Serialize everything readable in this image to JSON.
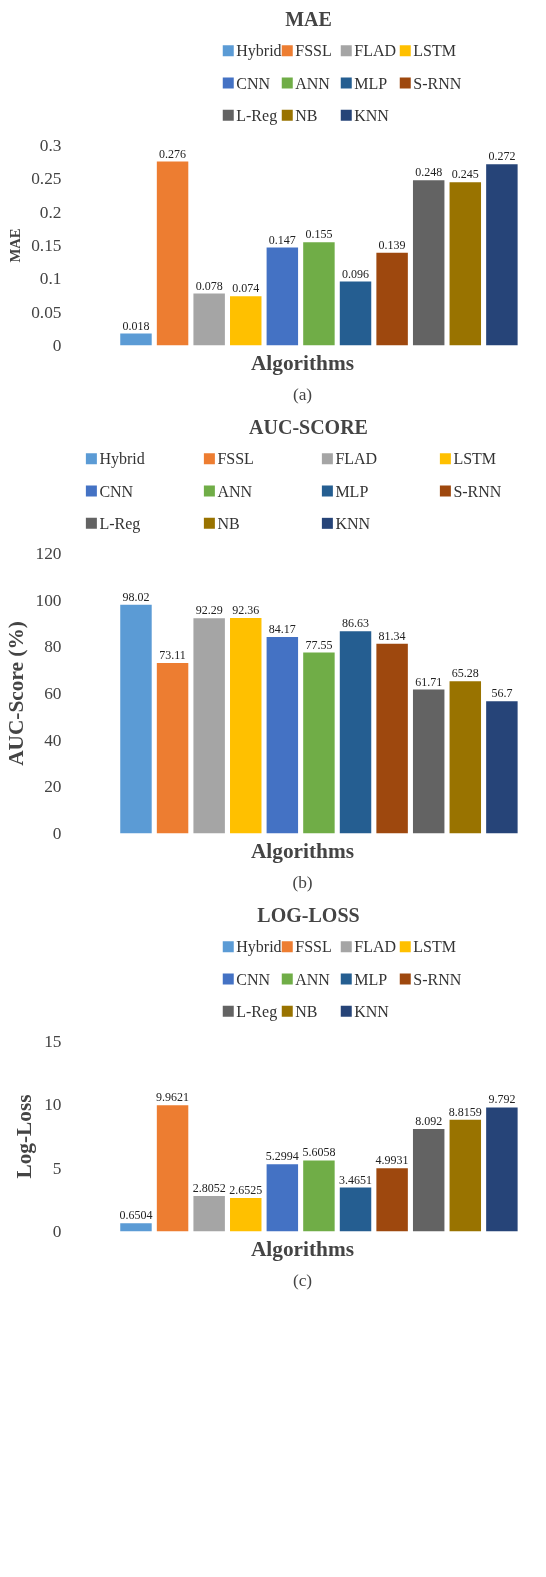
{
  "chart_data": [
    {
      "type": "bar",
      "title": "MAE",
      "xlabel": "Algorithms",
      "ylabel": "MAE",
      "categories": [
        null
      ],
      "ylim": [
        0,
        0.3
      ],
      "yticks": [
        0,
        0.05,
        0.1,
        0.15,
        0.2,
        0.25,
        0.3
      ],
      "data_labels": true,
      "legend": "top",
      "grid": false,
      "tick_labels": "y",
      "annotations": [
        "(a)"
      ],
      "series": [
        {
          "name": "Hybrid",
          "color": "#5b9bd5",
          "values": [
            0.018
          ]
        },
        {
          "name": "FSSL",
          "color": "#ed7d31",
          "values": [
            0.276
          ]
        },
        {
          "name": "FLAD",
          "color": "#a5a5a5",
          "values": [
            0.078
          ]
        },
        {
          "name": "LSTM",
          "color": "#ffc000",
          "values": [
            0.074
          ]
        },
        {
          "name": "CNN",
          "color": "#4472c4",
          "values": [
            0.147
          ]
        },
        {
          "name": "ANN",
          "color": "#70ad47",
          "values": [
            0.155
          ]
        },
        {
          "name": "MLP",
          "color": "#255e91",
          "values": [
            0.096
          ]
        },
        {
          "name": "S-RNN",
          "color": "#9e480e",
          "values": [
            0.139
          ]
        },
        {
          "name": "L-Reg",
          "color": "#636363",
          "values": [
            0.248
          ]
        },
        {
          "name": "NB",
          "color": "#997300",
          "values": [
            0.245
          ]
        },
        {
          "name": "KNN",
          "color": "#264478",
          "values": [
            0.272
          ]
        }
      ]
    },
    {
      "type": "bar",
      "title": "AUC-SCORE",
      "xlabel": "Algorithms",
      "ylabel": "AUC-Score (%)",
      "categories": [
        null
      ],
      "ylim": [
        0,
        120
      ],
      "yticks": [
        0,
        20,
        40,
        60,
        80,
        100,
        120
      ],
      "data_labels": true,
      "legend": "top",
      "grid": false,
      "tick_labels": "y",
      "annotations": [
        "(b)"
      ],
      "series": [
        {
          "name": "Hybrid",
          "color": "#5b9bd5",
          "values": [
            98.02
          ]
        },
        {
          "name": "FSSL",
          "color": "#ed7d31",
          "values": [
            73.11
          ]
        },
        {
          "name": "FLAD",
          "color": "#a5a5a5",
          "values": [
            92.29
          ]
        },
        {
          "name": "LSTM",
          "color": "#ffc000",
          "values": [
            92.36
          ]
        },
        {
          "name": "CNN",
          "color": "#4472c4",
          "values": [
            84.17
          ]
        },
        {
          "name": "ANN",
          "color": "#70ad47",
          "values": [
            77.55
          ]
        },
        {
          "name": "MLP",
          "color": "#255e91",
          "values": [
            86.63
          ]
        },
        {
          "name": "S-RNN",
          "color": "#9e480e",
          "values": [
            81.34
          ]
        },
        {
          "name": "L-Reg",
          "color": "#636363",
          "values": [
            61.71
          ]
        },
        {
          "name": "NB",
          "color": "#997300",
          "values": [
            65.28
          ]
        },
        {
          "name": "KNN",
          "color": "#264478",
          "values": [
            56.7
          ]
        }
      ]
    },
    {
      "type": "bar",
      "title": "LOG-LOSS",
      "xlabel": "Algorithms",
      "ylabel": "Log-Loss",
      "categories": [
        null
      ],
      "ylim": [
        0,
        15
      ],
      "yticks": [
        0,
        5,
        10,
        15
      ],
      "data_labels": true,
      "legend": "top",
      "grid": false,
      "tick_labels": "y",
      "annotations": [
        "(c)"
      ],
      "series": [
        {
          "name": "Hybrid",
          "color": "#5b9bd5",
          "values": [
            0.6504
          ]
        },
        {
          "name": "FSSL",
          "color": "#ed7d31",
          "values": [
            9.9621
          ]
        },
        {
          "name": "FLAD",
          "color": "#a5a5a5",
          "values": [
            2.8052
          ]
        },
        {
          "name": "LSTM",
          "color": "#ffc000",
          "values": [
            2.6525
          ]
        },
        {
          "name": "CNN",
          "color": "#4472c4",
          "values": [
            5.2994
          ]
        },
        {
          "name": "ANN",
          "color": "#70ad47",
          "values": [
            5.6058
          ]
        },
        {
          "name": "MLP",
          "color": "#255e91",
          "values": [
            3.4651
          ]
        },
        {
          "name": "S-RNN",
          "color": "#9e480e",
          "values": [
            4.9931
          ]
        },
        {
          "name": "L-Reg",
          "color": "#636363",
          "values": [
            8.092
          ]
        },
        {
          "name": "NB",
          "color": "#997300",
          "values": [
            8.8159
          ]
        },
        {
          "name": "KNN",
          "color": "#264478",
          "values": [
            9.792
          ]
        }
      ]
    }
  ]
}
